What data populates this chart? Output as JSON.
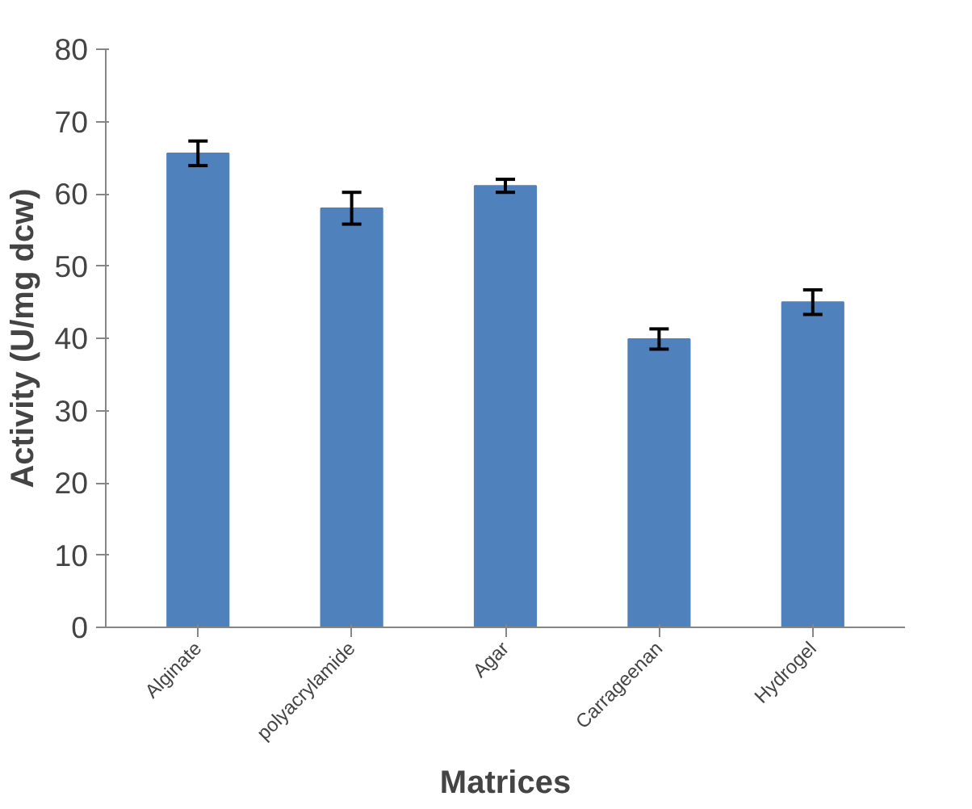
{
  "chart_data": {
    "type": "bar",
    "xlabel": "Matrices",
    "ylabel": "Activity (U/mg dcw)",
    "categories": [
      "Alginate",
      "polyacrylamide",
      "Agar",
      "Carrageenan",
      "Hydrogel"
    ],
    "values": [
      65.6,
      58.0,
      61.1,
      39.9,
      45.0
    ],
    "errors": [
      1.7,
      2.2,
      0.9,
      1.4,
      1.7
    ],
    "color": "#4f81bd",
    "ylim": [
      0,
      80
    ],
    "yticks": [
      0,
      10,
      20,
      30,
      40,
      50,
      60,
      70,
      80
    ],
    "grid": false
  }
}
